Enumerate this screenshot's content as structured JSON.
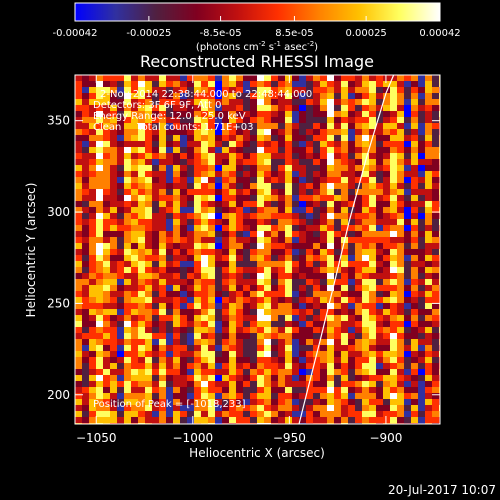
{
  "colorbar": {
    "ticks": [
      "-0.00042",
      "-0.00025",
      "-8.5e-05",
      "8.5e-05",
      "0.00025",
      "0.00042"
    ],
    "tick_values": [
      -0.00042,
      -0.00025,
      -8.5e-05,
      8.5e-05,
      0.00025,
      0.00042
    ],
    "range": [
      -0.00042,
      0.00042
    ],
    "units_prefix": "(photons cm",
    "units_sup1": "-2",
    "units_mid": " s",
    "units_sup2": "-1",
    "units_mid2": " asec",
    "units_sup3": "-2",
    "units_suffix": ")",
    "colors": [
      "#0000ff",
      "#3030a0",
      "#502040",
      "#800020",
      "#c01010",
      "#ff3000",
      "#ff8000",
      "#ffc000",
      "#ffff60",
      "#ffffff"
    ]
  },
  "chart_data": {
    "type": "heatmap",
    "title": "Reconstructed RHESSI Image",
    "xlabel": "Heliocentric X (arcsec)",
    "ylabel": "Heliocentric Y (arcsec)",
    "xlim": [
      -1061,
      -872
    ],
    "ylim": [
      184,
      375
    ],
    "xticks": [
      -1050,
      -1000,
      -950,
      -900
    ],
    "xtick_labels": [
      "−1050",
      "−1000",
      "−950",
      "−900"
    ],
    "yticks": [
      200,
      250,
      300,
      350
    ],
    "ytick_labels": [
      "200",
      "250",
      "300",
      "350"
    ],
    "limb_points": [
      [
        -945,
        184
      ],
      [
        -940,
        205
      ],
      [
        -934,
        230
      ],
      [
        -927,
        260
      ],
      [
        -919,
        295
      ],
      [
        -910,
        330
      ],
      [
        -900,
        365
      ],
      [
        -896,
        375
      ]
    ],
    "annotations": [
      "2-Nov-2014 22:38:44.000 to 22:48:44.000",
      "Detectors: 3F 6F 9F, Att 0",
      "Energy Range: 12.0 - 25.0 keV",
      "Clean     Total counts: 1.71E+03",
      "Position of Peak = [-1018,233]"
    ]
  },
  "footer": {
    "timestamp": "20-Jul-2017 10:07"
  }
}
